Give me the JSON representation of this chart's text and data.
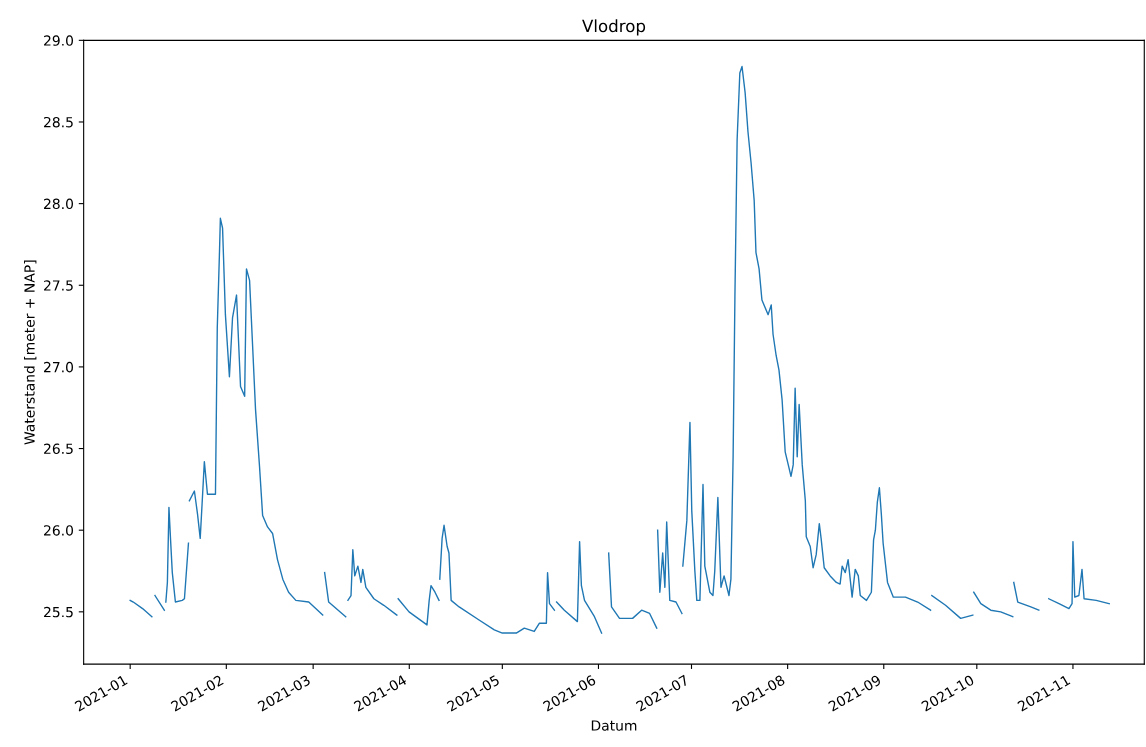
{
  "chart_data": {
    "type": "line",
    "title": "Vlodrop",
    "xlabel": "Datum",
    "ylabel": "Waterstand [meter + NAP]",
    "xlim": [
      "2020-12-17",
      "2021-11-24"
    ],
    "xticks": [
      "2021-01",
      "2021-02",
      "2021-03",
      "2021-04",
      "2021-05",
      "2021-06",
      "2021-07",
      "2021-08",
      "2021-09",
      "2021-10",
      "2021-11"
    ],
    "ylim": [
      25.18,
      29.0
    ],
    "yticks": [
      25.5,
      {
        "value": 26,
        "label": "26.0"
      },
      26.5,
      {
        "value": 27,
        "label": "27.0"
      },
      27.5,
      {
        "value": 28,
        "label": "28.0"
      },
      28.5,
      {
        "value": 29,
        "label": "29.0"
      }
    ],
    "grid": false,
    "marker": "none",
    "line_style": "solid",
    "series": [
      {
        "color": "#1f77b4",
        "x": [
          "2021-01-01",
          "2021-01-02",
          "2021-01-05",
          "2021-01-08",
          "2021-01-08T12:00",
          "2021-01-09",
          "2021-01-12",
          "2021-01-12T06:00",
          "2021-01-12T12:00",
          "2021-01-13",
          "2021-01-13T12:00",
          "2021-01-14",
          "2021-01-14T14:00",
          "2021-01-15T14:00",
          "2021-01-17T19:00",
          "2021-01-18T12:00",
          "2021-01-19T19:00",
          "2021-01-19T22:00",
          "2021-01-20T02:00",
          "2021-01-21T17:00",
          "2021-01-22T17:00",
          "2021-01-23T14:00",
          "2021-01-24T14:00",
          "2021-01-24T22:00",
          "2021-01-25T22:00",
          "2021-01-28T12:00",
          "2021-01-29T02:00",
          "2021-01-29T19:00",
          "2021-01-30T02:00",
          "2021-01-30T19:00",
          "2021-01-31T17:00",
          "2021-02-02",
          "2021-02-03",
          "2021-02-04T07:00",
          "2021-02-05T14:00",
          "2021-02-06T22:00",
          "2021-02-07T12:00",
          "2021-02-08T12:00",
          "2021-02-09T12:00",
          "2021-02-10T10:00",
          "2021-02-11T17:00",
          "2021-02-12T17:00",
          "2021-02-14T07:00",
          "2021-02-15T22:00",
          "2021-02-17T12:00",
          "2021-02-19T05:00",
          "2021-02-21T02:00",
          "2021-02-23T10:00",
          "2021-02-27T14:00",
          "2021-03-04T02:00",
          "2021-03-04T10:00",
          "2021-03-04T17:00",
          "2021-03-06",
          "2021-03-11T12:00",
          "2021-03-11T20:00",
          "2021-03-12T05:00",
          "2021-03-13T05:00",
          "2021-03-13T19:00",
          "2021-03-14T10:00",
          "2021-03-15T10:00",
          "2021-03-16T10:00",
          "2021-03-17",
          "2021-03-18",
          "2021-03-20T14:00",
          "2021-03-23T19:00",
          "2021-03-28",
          "2021-03-28T05:00",
          "2021-03-28T10:00",
          "2021-03-31T22:00",
          "2021-04-06T17:00",
          "2021-04-07T10:00",
          "2021-04-08",
          "2021-04-09T07:00",
          "2021-04-10T14:00",
          "2021-04-10T17:00",
          "2021-04-10T20:00",
          "2021-04-11T14:00",
          "2021-04-12T05:00",
          "2021-04-13T05:00",
          "2021-04-13T19:00",
          "2021-04-14T12:00",
          "2021-04-17T02:00",
          "2021-04-23T12:00",
          "2021-04-28T10:00",
          "2021-05-01",
          "2021-05-05T12:00",
          "2021-05-08T02:00",
          "2021-05-11T07:00",
          "2021-05-12T22:00",
          "2021-05-15T05:00",
          "2021-05-15T14:00",
          "2021-05-16T05:00",
          "2021-05-17T19:00",
          "2021-05-18T03:00",
          "2021-05-18T12:00",
          "2021-05-21",
          "2021-05-25T05:00",
          "2021-05-25T22:00",
          "2021-05-26T12:00",
          "2021-05-27T12:00",
          "2021-05-30T17:00",
          "2021-06-02",
          "2021-06-03T05:00",
          "2021-06-04T07:00",
          "2021-06-05T05:00",
          "2021-06-07T19:00",
          "2021-06-12",
          "2021-06-14T22:00",
          "2021-06-17T12:00",
          "2021-06-19T19:00",
          "2021-06-19T22:00",
          "2021-06-20T02:00",
          "2021-06-20T19:00",
          "2021-06-21T17:00",
          "2021-06-22T10:00",
          "2021-06-23",
          "2021-06-24",
          "2021-06-26",
          "2021-06-27T22:00",
          "2021-06-28T02:00",
          "2021-06-28T05:00",
          "2021-06-29T12:00",
          "2021-06-30T12:00",
          "2021-07-01T02:00",
          "2021-07-02T02:00",
          "2021-07-02T17:00",
          "2021-07-03T17:00",
          "2021-07-04T17:00",
          "2021-07-05T07:00",
          "2021-07-06T22:00",
          "2021-07-07T22:00",
          "2021-07-08T12:00",
          "2021-07-09T12:00",
          "2021-07-10T12:00",
          "2021-07-11T12:00",
          "2021-07-13T02:00",
          "2021-07-13T17:00",
          "2021-07-14T10:00",
          "2021-07-15",
          "2021-07-15T17:00",
          "2021-07-16T14:00",
          "2021-07-17T07:00",
          "2021-07-18T07:00",
          "2021-07-19T05:00",
          "2021-07-20T05:00",
          "2021-07-21T05:00",
          "2021-07-21T19:00",
          "2021-07-22T19:00",
          "2021-07-23T17:00",
          "2021-07-25T17:00",
          "2021-07-26T17:00",
          "2021-07-27T07:00",
          "2021-07-28T07:00",
          "2021-07-29T05:00",
          "2021-07-30T05:00",
          "2021-07-31T05:00",
          "2021-08-01T05:00",
          "2021-08-02T02:00",
          "2021-08-02T19:00",
          "2021-08-03T10:00",
          "2021-08-04T02:00",
          "2021-08-04T17:00",
          "2021-08-05T17:00",
          "2021-08-06T17:00",
          "2021-08-07",
          "2021-08-08T07:00",
          "2021-08-09T05:00",
          "2021-08-10T05:00",
          "2021-08-11T05:00",
          "2021-08-11T19:00",
          "2021-08-12T19:00",
          "2021-08-14T17:00",
          "2021-08-16T17:00",
          "2021-08-17T22:00",
          "2021-08-18T14:00",
          "2021-08-19T14:00",
          "2021-08-20T12:00",
          "2021-08-21T19:00",
          "2021-08-22T19:00",
          "2021-08-23T19:00",
          "2021-08-24T10:00",
          "2021-08-26T10:00",
          "2021-08-28",
          "2021-08-28T17:00",
          "2021-08-29T07:00",
          "2021-08-29T22:00",
          "2021-08-30T14:00",
          "2021-08-31T05:00",
          "2021-08-31T19:00",
          "2021-09-02T05:00",
          "2021-09-04T02:00",
          "2021-09-08",
          "2021-09-11T22:00",
          "2021-09-16T02:00",
          "2021-09-16T07:00",
          "2021-09-16T12:00",
          "2021-09-20T22:00",
          "2021-09-25T19:00",
          "2021-09-29T17:00",
          "2021-09-29T20:00",
          "2021-09-30",
          "2021-10-02T07:00",
          "2021-10-05T12:00",
          "2021-10-08T17:00",
          "2021-10-12T14:00",
          "2021-10-12T18:00",
          "2021-10-12T22:00",
          "2021-10-14T05:00",
          "2021-10-18T10:00",
          "2021-10-21",
          "2021-10-22T12:00",
          "2021-10-24T05:00",
          "2021-10-27T12:00",
          "2021-10-30T17:00",
          "2021-10-31T17:00",
          "2021-11-01",
          "2021-11-01T14:00",
          "2021-11-02T22:00",
          "2021-11-03T22:00",
          "2021-11-04T14:00",
          "2021-11-08T12:00",
          "2021-11-12T17:00"
        ],
        "values": [
          25.57,
          25.56,
          25.52,
          25.47,
          null,
          25.6,
          25.51,
          null,
          25.56,
          25.68,
          26.14,
          25.95,
          25.74,
          25.56,
          25.57,
          25.58,
          25.92,
          null,
          26.18,
          26.24,
          26.1,
          25.95,
          26.3,
          26.42,
          26.22,
          26.22,
          27.24,
          27.7,
          27.91,
          27.85,
          27.32,
          26.94,
          27.3,
          27.44,
          26.88,
          26.82,
          27.6,
          27.53,
          27.12,
          26.74,
          26.39,
          26.09,
          26.02,
          25.98,
          25.82,
          25.7,
          25.62,
          25.57,
          25.56,
          25.48,
          null,
          25.74,
          25.56,
          25.47,
          null,
          25.57,
          25.6,
          25.88,
          25.72,
          25.78,
          25.68,
          25.76,
          25.65,
          25.58,
          25.54,
          25.48,
          null,
          25.58,
          25.5,
          25.42,
          25.57,
          25.66,
          25.62,
          25.57,
          null,
          25.7,
          25.95,
          26.03,
          25.9,
          25.86,
          25.57,
          25.53,
          25.45,
          25.39,
          25.37,
          25.37,
          25.4,
          25.38,
          25.43,
          25.43,
          25.74,
          25.55,
          25.51,
          null,
          25.56,
          25.51,
          25.44,
          25.93,
          25.66,
          25.57,
          25.47,
          25.37,
          null,
          25.86,
          25.53,
          25.46,
          25.46,
          25.51,
          25.49,
          25.4,
          null,
          26.0,
          25.62,
          25.86,
          25.65,
          26.05,
          25.57,
          25.56,
          25.49,
          null,
          25.78,
          26.06,
          26.66,
          26.12,
          25.75,
          25.57,
          25.57,
          26.28,
          25.78,
          25.62,
          25.6,
          25.75,
          26.2,
          25.65,
          25.72,
          25.6,
          25.7,
          26.45,
          27.43,
          28.39,
          28.8,
          28.84,
          28.68,
          28.44,
          28.25,
          28.02,
          27.7,
          27.6,
          27.41,
          27.32,
          27.38,
          27.2,
          27.07,
          26.98,
          26.8,
          26.48,
          26.4,
          26.33,
          26.4,
          26.87,
          26.45,
          26.77,
          26.4,
          26.18,
          25.96,
          25.9,
          25.77,
          25.85,
          26.04,
          25.95,
          25.77,
          25.72,
          25.68,
          25.67,
          25.78,
          25.74,
          25.82,
          25.59,
          25.76,
          25.72,
          25.6,
          25.57,
          25.62,
          25.94,
          26.0,
          26.17,
          26.26,
          26.1,
          25.92,
          25.68,
          25.59,
          25.59,
          25.56,
          25.51,
          null,
          25.6,
          25.54,
          25.46,
          25.48,
          null,
          25.62,
          25.55,
          25.51,
          25.5,
          25.47,
          null,
          25.68,
          25.56,
          25.53,
          25.51,
          null,
          25.58,
          25.55,
          25.52,
          25.55,
          25.93,
          25.59,
          25.6,
          25.76,
          25.58,
          25.57,
          25.55
        ]
      }
    ]
  }
}
